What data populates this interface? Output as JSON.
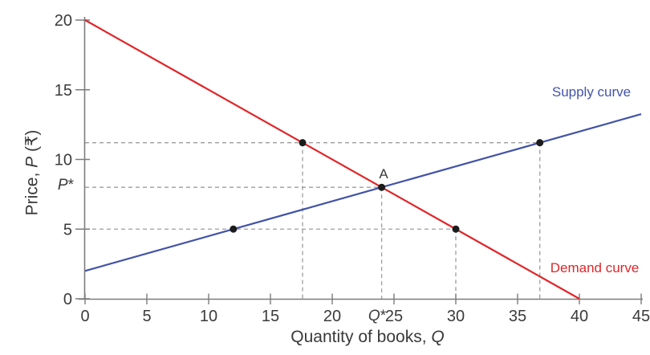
{
  "chart_data": {
    "type": "line",
    "title": "",
    "xlabel": "Quantity of books, Q",
    "ylabel": "Price, P (₹)",
    "xlabel_parts": {
      "prefix": "Quantity of books, ",
      "variable": "Q"
    },
    "ylabel_parts": {
      "prefix": "Price, ",
      "variable": "P",
      "suffix": " (₹)"
    },
    "xlim": [
      0,
      45
    ],
    "ylim": [
      0,
      20
    ],
    "x_ticks": [
      0,
      5,
      10,
      15,
      20,
      25,
      30,
      35,
      40,
      45
    ],
    "y_ticks": [
      0,
      5,
      10,
      15,
      20
    ],
    "grid": false,
    "legend_position": "inline-labels",
    "series": [
      {
        "name": "Demand curve",
        "color": "#e0262a",
        "x": [
          0,
          40
        ],
        "y": [
          20,
          0
        ]
      },
      {
        "name": "Supply curve",
        "color": "#4253a8",
        "x": [
          0,
          45
        ],
        "y": [
          2,
          13.25
        ]
      }
    ],
    "points": [
      {
        "x": 17.6,
        "y": 11.2,
        "on": "demand curve"
      },
      {
        "x": 36.8,
        "y": 11.2,
        "on": "supply curve"
      },
      {
        "x": 12,
        "y": 5,
        "on": "supply curve"
      },
      {
        "x": 30,
        "y": 5,
        "on": "demand curve"
      },
      {
        "x": 24,
        "y": 8,
        "on": "equilibrium",
        "label": "A"
      }
    ],
    "dashed_guides": {
      "horizontal": [
        {
          "price": 11.2,
          "to_quantity": 36.8
        },
        {
          "price": 8,
          "to_quantity": 24
        },
        {
          "price": 5,
          "to_quantity": 30
        }
      ],
      "vertical": [
        {
          "quantity": 17.6,
          "to_price": 11.2
        },
        {
          "quantity": 24,
          "to_price": 8
        },
        {
          "quantity": 30,
          "to_price": 5
        },
        {
          "quantity": 36.8,
          "to_price": 11.2
        }
      ]
    },
    "equilibrium": {
      "price": 8,
      "quantity": 24,
      "point_label": "A",
      "price_label": {
        "variable": "P",
        "star": "*"
      },
      "quantity_label": {
        "variable": "Q",
        "star": "*"
      }
    },
    "colors": {
      "demand": "#e0262a",
      "supply": "#4253a8",
      "dashed": "#9d9d9d",
      "axis": "#7c7c7c",
      "text": "#3b3b3b",
      "point": "#1c1c1c"
    }
  }
}
